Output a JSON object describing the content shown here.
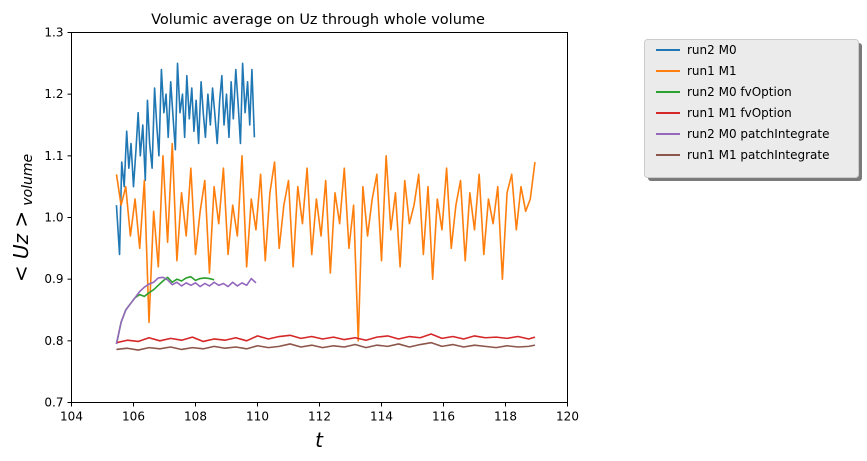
{
  "chart_data": {
    "type": "line",
    "title": "Volumic average on Uz through whole volume",
    "xlabel": "t",
    "ylabel_main": "< Uz >",
    "ylabel_sub": "volume",
    "xlim": [
      104,
      120
    ],
    "ylim": [
      0.7,
      1.3
    ],
    "xticks": [
      "104",
      "106",
      "108",
      "110",
      "112",
      "114",
      "116",
      "118",
      "120"
    ],
    "yticks": [
      "0.7",
      "0.8",
      "0.9",
      "1.0",
      "1.1",
      "1.2",
      "1.3"
    ],
    "grid": false,
    "legend_position": "outside-right-top",
    "series": [
      {
        "name": "run2 M0",
        "color": "#1f77b4",
        "x": [
          105.45,
          105.55,
          105.62,
          105.7,
          105.78,
          105.85,
          105.92,
          106.0,
          106.08,
          106.15,
          106.22,
          106.3,
          106.38,
          106.45,
          106.52,
          106.6,
          106.68,
          106.75,
          106.82,
          106.9,
          106.98,
          107.05,
          107.12,
          107.2,
          107.28,
          107.35,
          107.42,
          107.5,
          107.58,
          107.65,
          107.72,
          107.8,
          107.88,
          107.95,
          108.02,
          108.1,
          108.18,
          108.25,
          108.32,
          108.4,
          108.48,
          108.55,
          108.62,
          108.7,
          108.78,
          108.85,
          108.92,
          109.0,
          109.08,
          109.15,
          109.22,
          109.3,
          109.38,
          109.45,
          109.52,
          109.6,
          109.68,
          109.75,
          109.82,
          109.9
        ],
        "y": [
          1.02,
          0.94,
          1.09,
          1.05,
          1.14,
          1.08,
          1.12,
          1.05,
          1.11,
          1.17,
          1.1,
          1.15,
          1.06,
          1.19,
          1.12,
          1.08,
          1.21,
          1.15,
          1.1,
          1.24,
          1.17,
          1.2,
          1.13,
          1.22,
          1.16,
          1.11,
          1.25,
          1.17,
          1.2,
          1.13,
          1.23,
          1.16,
          1.21,
          1.14,
          1.19,
          1.12,
          1.22,
          1.17,
          1.13,
          1.2,
          1.15,
          1.21,
          1.17,
          1.12,
          1.19,
          1.23,
          1.15,
          1.2,
          1.13,
          1.22,
          1.16,
          1.24,
          1.18,
          1.12,
          1.25,
          1.17,
          1.22,
          1.15,
          1.24,
          1.13
        ]
      },
      {
        "name": "run1 M1",
        "color": "#ff7f0e",
        "x": [
          105.45,
          105.6,
          105.75,
          105.9,
          106.05,
          106.2,
          106.35,
          106.5,
          106.65,
          106.8,
          106.95,
          107.1,
          107.25,
          107.4,
          107.55,
          107.7,
          107.85,
          108.0,
          108.15,
          108.3,
          108.45,
          108.6,
          108.75,
          108.9,
          109.05,
          109.2,
          109.35,
          109.5,
          109.65,
          109.8,
          109.95,
          110.1,
          110.25,
          110.4,
          110.55,
          110.7,
          110.85,
          111.0,
          111.15,
          111.3,
          111.45,
          111.6,
          111.75,
          111.9,
          112.05,
          112.2,
          112.35,
          112.5,
          112.65,
          112.8,
          112.95,
          113.1,
          113.25,
          113.4,
          113.55,
          113.7,
          113.85,
          114.0,
          114.15,
          114.3,
          114.45,
          114.6,
          114.75,
          114.9,
          115.05,
          115.2,
          115.35,
          115.5,
          115.65,
          115.8,
          115.95,
          116.1,
          116.25,
          116.4,
          116.55,
          116.7,
          116.85,
          117.0,
          117.15,
          117.3,
          117.45,
          117.6,
          117.75,
          117.9,
          118.05,
          118.2,
          118.35,
          118.5,
          118.65,
          118.8,
          118.95
        ],
        "y": [
          1.07,
          1.02,
          1.05,
          0.97,
          1.03,
          0.95,
          1.06,
          0.83,
          1.01,
          0.92,
          1.1,
          0.96,
          1.12,
          0.93,
          1.04,
          0.97,
          1.08,
          0.94,
          1.01,
          1.06,
          0.91,
          1.05,
          0.99,
          1.08,
          0.94,
          1.02,
          0.97,
          1.1,
          0.92,
          1.03,
          0.98,
          1.07,
          0.93,
          1.04,
          1.09,
          0.95,
          1.02,
          1.06,
          0.92,
          1.05,
          0.99,
          1.08,
          0.94,
          1.03,
          0.97,
          1.06,
          0.91,
          1.04,
          0.99,
          1.08,
          0.95,
          1.02,
          0.8,
          1.05,
          0.97,
          1.03,
          1.07,
          0.93,
          1.1,
          0.98,
          1.04,
          0.92,
          1.06,
          0.99,
          1.02,
          1.07,
          0.94,
          1.05,
          0.9,
          1.03,
          0.98,
          1.08,
          0.95,
          1.02,
          1.06,
          0.93,
          1.04,
          0.98,
          1.07,
          0.94,
          1.03,
          0.99,
          1.05,
          0.9,
          1.04,
          1.07,
          0.98,
          1.05,
          1.01,
          1.03,
          1.09
        ]
      },
      {
        "name": "run2 M0 fvOption",
        "color": "#2ca02c",
        "x": [
          105.45,
          105.6,
          105.75,
          105.9,
          106.05,
          106.2,
          106.35,
          106.5,
          106.65,
          106.8,
          106.95,
          107.1,
          107.25,
          107.4,
          107.55,
          107.7,
          107.85,
          108.0,
          108.15,
          108.3,
          108.45,
          108.6
        ],
        "y": [
          0.795,
          0.83,
          0.85,
          0.86,
          0.87,
          0.875,
          0.872,
          0.878,
          0.883,
          0.89,
          0.897,
          0.903,
          0.895,
          0.9,
          0.897,
          0.902,
          0.904,
          0.898,
          0.901,
          0.902,
          0.901,
          0.899
        ]
      },
      {
        "name": "run1 M1 fvOption",
        "color": "#d62728",
        "x": [
          105.45,
          105.8,
          106.15,
          106.5,
          106.85,
          107.2,
          107.55,
          107.9,
          108.25,
          108.6,
          108.95,
          109.3,
          109.65,
          110.0,
          110.35,
          110.7,
          111.05,
          111.4,
          111.75,
          112.1,
          112.45,
          112.8,
          113.15,
          113.5,
          113.85,
          114.2,
          114.55,
          114.9,
          115.25,
          115.6,
          115.95,
          116.3,
          116.65,
          117.0,
          117.35,
          117.7,
          118.05,
          118.4,
          118.75,
          118.95
        ],
        "y": [
          0.797,
          0.801,
          0.799,
          0.805,
          0.8,
          0.804,
          0.801,
          0.806,
          0.799,
          0.803,
          0.801,
          0.805,
          0.8,
          0.808,
          0.803,
          0.807,
          0.809,
          0.804,
          0.807,
          0.803,
          0.806,
          0.802,
          0.805,
          0.801,
          0.806,
          0.808,
          0.803,
          0.807,
          0.805,
          0.811,
          0.804,
          0.807,
          0.803,
          0.808,
          0.805,
          0.806,
          0.804,
          0.807,
          0.803,
          0.806
        ]
      },
      {
        "name": "run2 M0 patchIntegrate",
        "color": "#9467bd",
        "x": [
          105.45,
          105.6,
          105.75,
          105.9,
          106.05,
          106.2,
          106.35,
          106.5,
          106.65,
          106.8,
          106.95,
          107.1,
          107.25,
          107.4,
          107.55,
          107.7,
          107.85,
          108.0,
          108.15,
          108.3,
          108.45,
          108.6,
          108.75,
          108.9,
          109.05,
          109.2,
          109.35,
          109.5,
          109.65,
          109.8,
          109.95
        ],
        "y": [
          0.795,
          0.83,
          0.85,
          0.86,
          0.87,
          0.88,
          0.887,
          0.892,
          0.895,
          0.902,
          0.903,
          0.899,
          0.891,
          0.895,
          0.889,
          0.894,
          0.89,
          0.894,
          0.888,
          0.893,
          0.889,
          0.895,
          0.89,
          0.893,
          0.888,
          0.895,
          0.889,
          0.894,
          0.89,
          0.901,
          0.894
        ]
      },
      {
        "name": "run1 M1 patchIntegrate",
        "color": "#8c564b",
        "x": [
          105.45,
          105.8,
          106.15,
          106.5,
          106.85,
          107.2,
          107.55,
          107.9,
          108.25,
          108.6,
          108.95,
          109.3,
          109.65,
          110.0,
          110.35,
          110.7,
          111.05,
          111.4,
          111.75,
          112.1,
          112.45,
          112.8,
          113.15,
          113.5,
          113.85,
          114.2,
          114.55,
          114.9,
          115.25,
          115.6,
          115.95,
          116.3,
          116.65,
          117.0,
          117.35,
          117.7,
          118.05,
          118.4,
          118.75,
          118.95
        ],
        "y": [
          0.786,
          0.788,
          0.785,
          0.789,
          0.787,
          0.79,
          0.786,
          0.789,
          0.787,
          0.791,
          0.788,
          0.79,
          0.787,
          0.792,
          0.789,
          0.791,
          0.795,
          0.79,
          0.793,
          0.789,
          0.792,
          0.79,
          0.794,
          0.789,
          0.793,
          0.791,
          0.795,
          0.79,
          0.794,
          0.797,
          0.791,
          0.794,
          0.79,
          0.793,
          0.791,
          0.789,
          0.792,
          0.79,
          0.791,
          0.793
        ]
      }
    ]
  }
}
